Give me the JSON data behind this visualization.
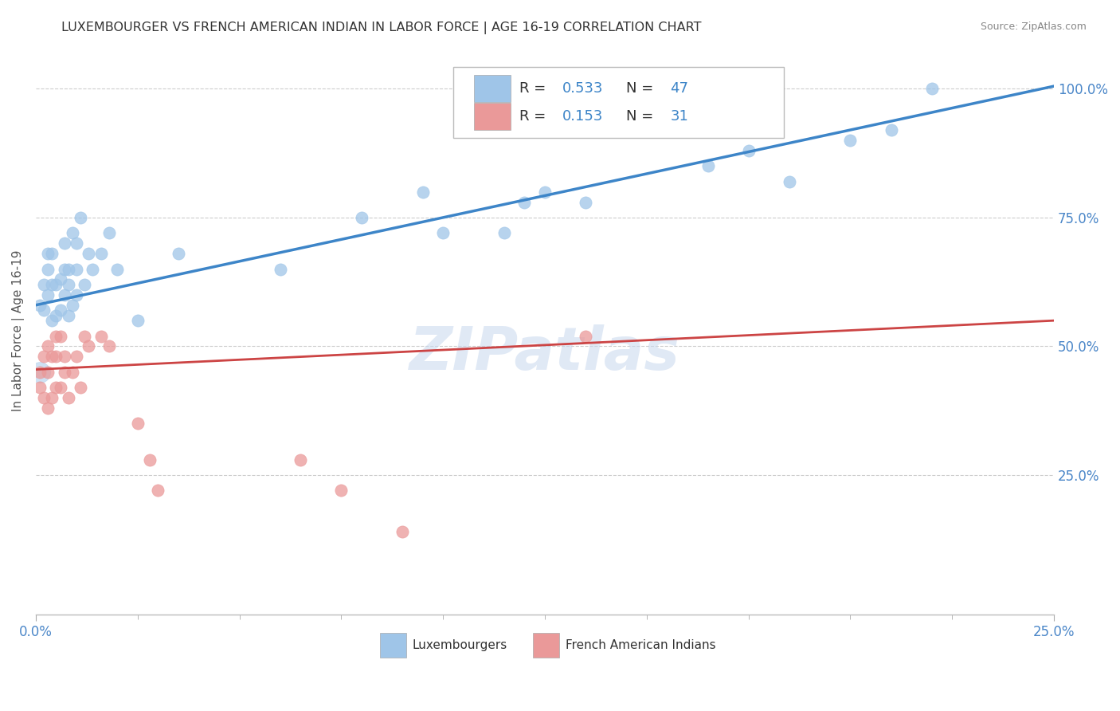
{
  "title": "LUXEMBOURGER VS FRENCH AMERICAN INDIAN IN LABOR FORCE | AGE 16-19 CORRELATION CHART",
  "source": "Source: ZipAtlas.com",
  "ylabel": "In Labor Force | Age 16-19",
  "xlim": [
    0.0,
    0.25
  ],
  "ylim": [
    -0.02,
    1.08
  ],
  "ytick_labels": [
    "25.0%",
    "50.0%",
    "75.0%",
    "100.0%"
  ],
  "ytick_positions": [
    0.25,
    0.5,
    0.75,
    1.0
  ],
  "legend_bottom_blue": "Luxembourgers",
  "legend_bottom_pink": "French American Indians",
  "blue_color": "#9fc5e8",
  "pink_color": "#ea9999",
  "blue_line_color": "#3d85c8",
  "pink_line_color": "#cc4444",
  "watermark": "ZIPatlas",
  "blue_intercept": 0.58,
  "blue_slope": 1.7,
  "pink_intercept": 0.455,
  "pink_slope": 0.38,
  "blue_points_x": [
    0.001,
    0.002,
    0.002,
    0.003,
    0.003,
    0.003,
    0.004,
    0.004,
    0.004,
    0.005,
    0.005,
    0.006,
    0.006,
    0.007,
    0.007,
    0.007,
    0.008,
    0.008,
    0.008,
    0.009,
    0.009,
    0.01,
    0.01,
    0.01,
    0.011,
    0.012,
    0.013,
    0.014,
    0.016,
    0.018,
    0.02,
    0.025,
    0.035,
    0.06,
    0.08,
    0.095,
    0.1,
    0.115,
    0.12,
    0.125,
    0.135,
    0.165,
    0.175,
    0.185,
    0.2,
    0.21,
    0.22
  ],
  "blue_points_y": [
    0.58,
    0.57,
    0.62,
    0.6,
    0.65,
    0.68,
    0.55,
    0.62,
    0.68,
    0.56,
    0.62,
    0.57,
    0.63,
    0.6,
    0.65,
    0.7,
    0.56,
    0.62,
    0.65,
    0.58,
    0.72,
    0.6,
    0.65,
    0.7,
    0.75,
    0.62,
    0.68,
    0.65,
    0.68,
    0.72,
    0.65,
    0.55,
    0.68,
    0.65,
    0.75,
    0.8,
    0.72,
    0.72,
    0.78,
    0.8,
    0.78,
    0.85,
    0.88,
    0.82,
    0.9,
    0.92,
    1.0
  ],
  "pink_points_x": [
    0.001,
    0.001,
    0.002,
    0.002,
    0.003,
    0.003,
    0.003,
    0.004,
    0.004,
    0.005,
    0.005,
    0.005,
    0.006,
    0.006,
    0.007,
    0.007,
    0.008,
    0.009,
    0.01,
    0.011,
    0.012,
    0.013,
    0.016,
    0.018,
    0.025,
    0.028,
    0.03,
    0.065,
    0.075,
    0.09,
    0.135
  ],
  "pink_points_y": [
    0.42,
    0.45,
    0.4,
    0.48,
    0.38,
    0.45,
    0.5,
    0.4,
    0.48,
    0.42,
    0.48,
    0.52,
    0.42,
    0.52,
    0.45,
    0.48,
    0.4,
    0.45,
    0.48,
    0.42,
    0.52,
    0.5,
    0.52,
    0.5,
    0.35,
    0.28,
    0.22,
    0.28,
    0.22,
    0.14,
    0.52
  ]
}
